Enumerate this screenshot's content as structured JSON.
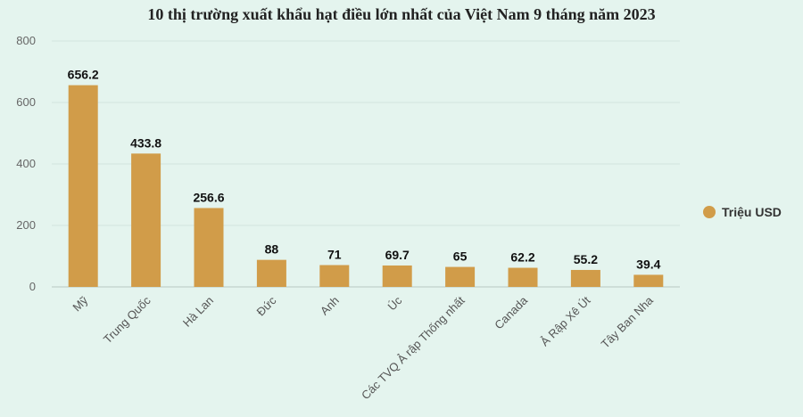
{
  "chart_data": {
    "type": "bar",
    "title": "10 thị trường xuất khẩu hạt điều lớn nhất của Việt Nam 9 tháng năm 2023",
    "categories": [
      "Mỹ",
      "Trung Quốc",
      "Hà Lan",
      "Đức",
      "Anh",
      "Úc",
      "Các TVQ Ả rập Thống nhất",
      "Canada",
      "Ả Rập Xê Út",
      "Tây Ban Nha"
    ],
    "series": [
      {
        "name": "Triệu USD",
        "values": [
          656.2,
          433.8,
          256.6,
          88,
          71,
          69.7,
          65,
          62.2,
          55.2,
          39.4
        ],
        "data_labels": [
          "656.2",
          "433.8",
          "256.6",
          "88",
          "71",
          "69.7",
          "65",
          "62.2",
          "55.2",
          "39.4"
        ],
        "color": "#d19c49"
      }
    ],
    "ylim": [
      0,
      800
    ],
    "yticks": [
      "0",
      "200",
      "400",
      "600",
      "800"
    ],
    "grid": true,
    "legend_position": "right"
  }
}
